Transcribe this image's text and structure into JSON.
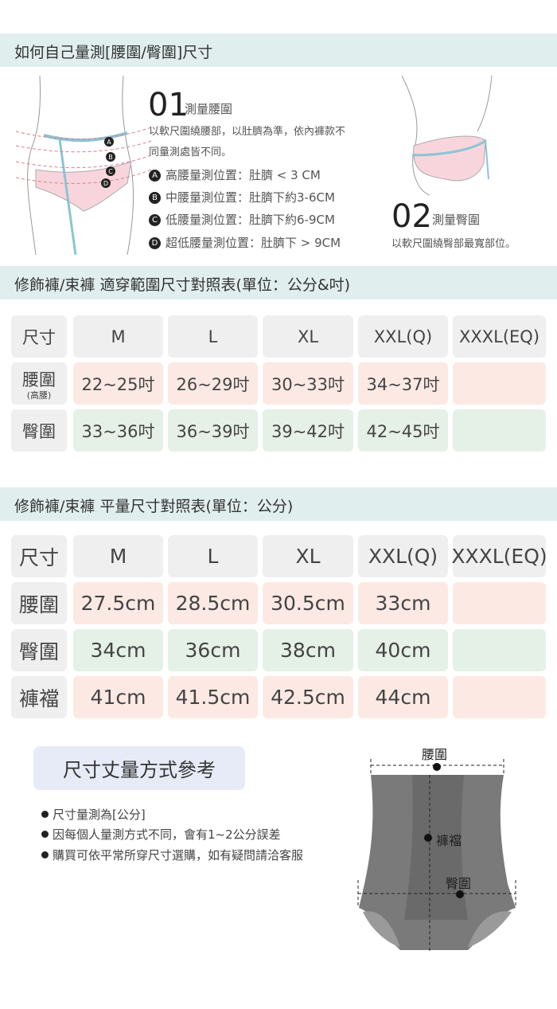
{
  "section1": {
    "title": "如何自己量測[腰圍/臀圍]尺寸",
    "waist": {
      "number": "01",
      "heading": "測量腰圍",
      "desc_line1": "以軟尺圍繞腰部，以肚臍為準，依內褲款不",
      "desc_line2": "同量測處皆不同。",
      "points": [
        {
          "badge": "A",
          "text": "高腰量測位置：肚臍 < 3 CM"
        },
        {
          "badge": "B",
          "text": "中腰量測位置：肚臍下約3-6CM"
        },
        {
          "badge": "C",
          "text": "低腰量測位置：肚臍下約6-9CM"
        },
        {
          "badge": "D",
          "text": "超低腰量測位置：肚臍下 > 9CM"
        }
      ]
    },
    "hip": {
      "number": "02",
      "heading": "測量臀圍",
      "desc": "以軟尺圍繞臀部最寬部位。"
    }
  },
  "table1": {
    "title": "修飾褲/束褲 適穿範圍尺寸對照表(單位：公分&吋)",
    "header": [
      "尺寸",
      "M",
      "L",
      "XL",
      "XXL(Q)",
      "XXXL(EQ)"
    ],
    "rows": [
      {
        "label": "腰圍",
        "sublabel": "(高腰)",
        "values": [
          "22~25吋",
          "26~29吋",
          "30~33吋",
          "34~37吋",
          ""
        ]
      },
      {
        "label": "臀圍",
        "values": [
          "33~36吋",
          "36~39吋",
          "39~42吋",
          "42~45吋",
          ""
        ]
      }
    ]
  },
  "table2": {
    "title": "修飾褲/束褲 平量尺寸對照表(單位：公分)",
    "header": [
      "尺寸",
      "M",
      "L",
      "XL",
      "XXL(Q)",
      "XXXL(EQ)"
    ],
    "rows": [
      {
        "label": "腰圍",
        "values": [
          "27.5cm",
          "28.5cm",
          "30.5cm",
          "33cm",
          ""
        ]
      },
      {
        "label": "臀圍",
        "values": [
          "34cm",
          "36cm",
          "38cm",
          "40cm",
          ""
        ]
      },
      {
        "label": "褲襠",
        "values": [
          "41cm",
          "41.5cm",
          "42.5cm",
          "44cm",
          ""
        ]
      }
    ]
  },
  "reference": {
    "title": "尺寸丈量方式參考",
    "bullets": [
      "尺寸量測為[公分]",
      "因每個人量測方式不同，會有1~2公分誤差",
      "購買可依平常所穿尺寸選購，如有疑問請洽客服"
    ],
    "diagram_labels": {
      "waist": "腰圍",
      "rise": "褲襠",
      "hip": "臀圍"
    }
  },
  "colors": {
    "header_bar": "#e1eeee",
    "gray_cell": "#efefef",
    "pink_cell": "#fce9e3",
    "green_cell": "#e5f0e7",
    "ref_box": "#e6ebf7",
    "pants": "#7a7a7a"
  }
}
